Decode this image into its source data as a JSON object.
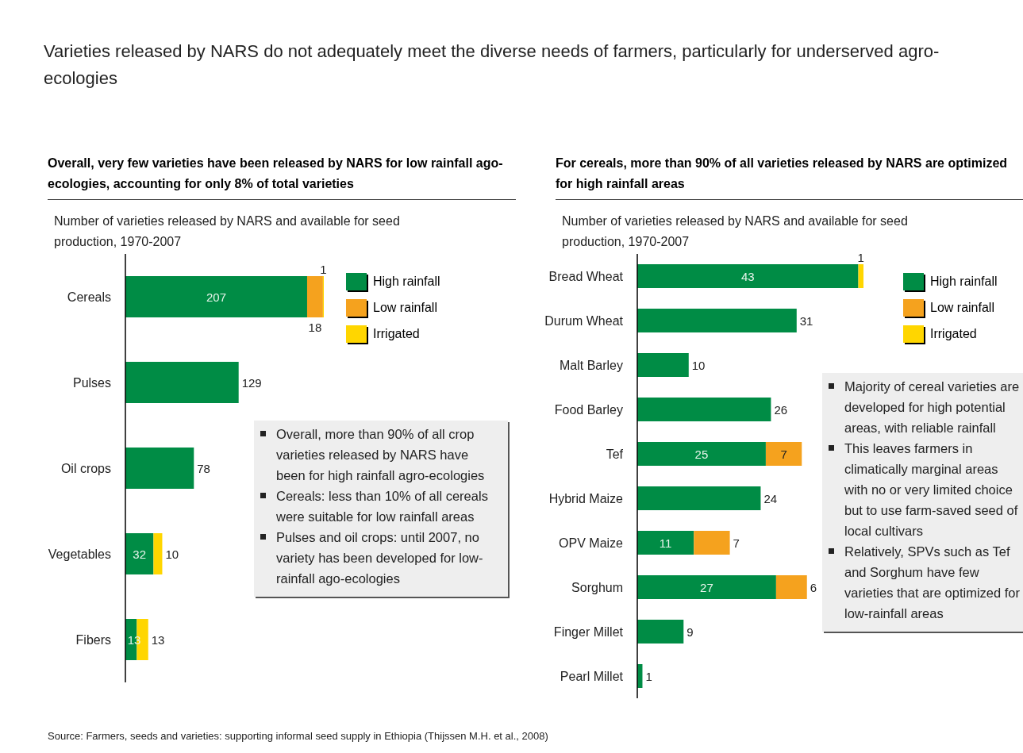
{
  "chart_data": [
    {
      "type": "bar",
      "orientation": "horizontal",
      "stacked": true,
      "title": "Varieties released by NARS do not adequately meet the diverse needs of farmers, particularly for underserved agro-ecologies",
      "subtitle": "Overall, very few varieties have been released by NARS for low rainfall ago-ecologies, accounting for only 8% of total varieties",
      "xlabel": "Number of varieties released by NARS and available for seed production, 1970-2007",
      "categories": [
        "Cereals",
        "Pulses",
        "Oil crops",
        "Vegetables",
        "Fibers"
      ],
      "series": [
        {
          "name": "High rainfall",
          "color": "#008c45",
          "values": [
            207,
            129,
            78,
            32,
            13
          ]
        },
        {
          "name": "Low rainfall",
          "color": "#f5a21e",
          "values": [
            18,
            null,
            null,
            null,
            null
          ]
        },
        {
          "name": "Irrigated",
          "color": "#ffd600",
          "values": [
            1,
            null,
            null,
            10,
            13
          ]
        }
      ],
      "data_labels": true,
      "legend": "top right",
      "grid": false,
      "annotations": [
        "Overall, more than 90% of all crop varieties released by NARS have been for high rainfall agro-ecologies",
        "Cereals: less than 10% of all cereals were suitable for low rainfall areas",
        "Pulses and oil crops: until 2007, no variety has been developed for low-rainfall ago-ecologies"
      ]
    },
    {
      "type": "bar",
      "orientation": "horizontal",
      "stacked": true,
      "subtitle": "For cereals, more than 90% of all varieties released by NARS are optimized for high rainfall areas",
      "xlabel": "Number of varieties released by NARS and available for seed production, 1970-2007",
      "categories": [
        "Bread Wheat",
        "Durum Wheat",
        "Malt Barley",
        "Food Barley",
        "Tef",
        "Hybrid Maize",
        "OPV Maize",
        "Sorghum",
        "Finger Millet",
        "Pearl Millet"
      ],
      "series": [
        {
          "name": "High rainfall",
          "color": "#008c45",
          "values": [
            43,
            31,
            10,
            26,
            25,
            24,
            11,
            27,
            9,
            1
          ]
        },
        {
          "name": "Low rainfall",
          "color": "#f5a21e",
          "values": [
            null,
            null,
            null,
            null,
            7,
            null,
            7,
            6,
            null,
            null
          ]
        },
        {
          "name": "Irrigated",
          "color": "#ffd600",
          "values": [
            1,
            null,
            null,
            null,
            null,
            null,
            null,
            null,
            null,
            null
          ]
        }
      ],
      "data_labels": true,
      "legend": "top right",
      "grid": false,
      "annotations": [
        "Majority of cereal varieties are developed for high potential areas, with reliable rainfall",
        "This leaves farmers in climatically marginal areas with no or very limited choice but to use farm-saved seed of local cultivars",
        "Relatively, SPVs such as Tef and Sorghum have few varieties that are optimized for low-rainfall areas",
        "Source: Farmers, seeds and varieties: supporting informal seed supply in Ethiopia (Thijssen M.H. et al., 2008)"
      ]
    }
  ]
}
